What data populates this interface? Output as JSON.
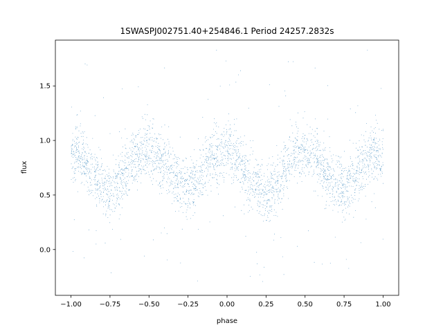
{
  "chart_data": {
    "type": "scatter",
    "title": "1SWASPJ002751.40+254846.1 Period 24257.2832s",
    "xlabel": "phase",
    "ylabel": "flux",
    "xlim": [
      -1.1,
      1.1
    ],
    "ylim": [
      -0.42,
      1.92
    ],
    "x_ticks": [
      {
        "value": -1.0,
        "label": "−1.00"
      },
      {
        "value": -0.75,
        "label": "−0.75"
      },
      {
        "value": -0.5,
        "label": "−0.50"
      },
      {
        "value": -0.25,
        "label": "−0.25"
      },
      {
        "value": 0.0,
        "label": "0.00"
      },
      {
        "value": 0.25,
        "label": "0.25"
      },
      {
        "value": 0.5,
        "label": "0.50"
      },
      {
        "value": 0.75,
        "label": "0.75"
      },
      {
        "value": 1.0,
        "label": "1.00"
      }
    ],
    "y_ticks": [
      {
        "value": 0.0,
        "label": "0.0"
      },
      {
        "value": 0.5,
        "label": "0.5"
      },
      {
        "value": 1.0,
        "label": "1.0"
      },
      {
        "value": 1.5,
        "label": "1.5"
      }
    ],
    "grid": false,
    "point_color": "#1f77b4",
    "series": [
      {
        "x": [
          -1.0,
          -0.95,
          -0.9,
          -0.85,
          -0.8,
          -0.75,
          -0.7,
          -0.65,
          -0.6,
          -0.55,
          -0.5,
          -0.45,
          -0.4,
          -0.35,
          -0.3,
          -0.25,
          -0.2,
          -0.15,
          -0.1,
          -0.05,
          0.0,
          0.05,
          0.1,
          0.15,
          0.2,
          0.25,
          0.3,
          0.35,
          0.4,
          0.45,
          0.5,
          0.55,
          0.6,
          0.65,
          0.7,
          0.75,
          0.8,
          0.85,
          0.9,
          0.95,
          1.0
        ],
        "y": [
          0.84,
          0.87,
          0.8,
          0.69,
          0.57,
          0.52,
          0.6,
          0.73,
          0.84,
          0.9,
          0.9,
          0.86,
          0.79,
          0.69,
          0.6,
          0.56,
          0.63,
          0.75,
          0.86,
          0.91,
          0.88,
          0.84,
          0.75,
          0.64,
          0.55,
          0.5,
          0.58,
          0.71,
          0.83,
          0.89,
          0.9,
          0.86,
          0.79,
          0.69,
          0.6,
          0.55,
          0.62,
          0.74,
          0.84,
          0.88,
          0.84
        ]
      }
    ]
  }
}
